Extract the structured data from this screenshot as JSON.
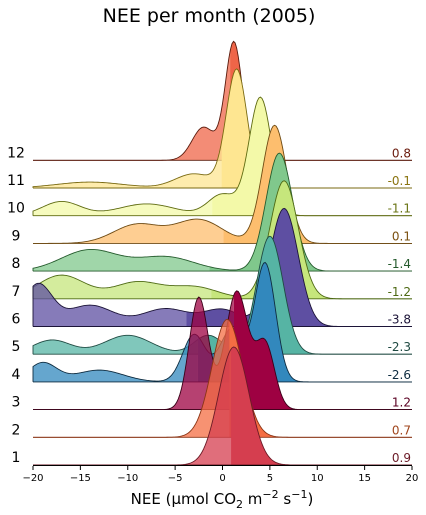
{
  "chart_data": {
    "type": "ridgeline",
    "title": "NEE per month (2005)",
    "xlabel": {
      "prefix": "NEE (µmol CO",
      "sub": "2",
      "mid": " m",
      "sup1": "−2",
      "mid2": " s",
      "sup2": "−1",
      "suffix": ")"
    },
    "xlim": [
      -20,
      20
    ],
    "xticks": [
      -20,
      -15,
      -10,
      -5,
      0,
      5,
      10,
      15,
      20
    ],
    "months": [
      {
        "label": "1",
        "mean": "0.9",
        "mean_value": 0.9,
        "fill": "#d53e4f",
        "edge": "#6b1a26",
        "value_color": "#6b1a26",
        "peaks": [
          {
            "mu": 1.2,
            "sigma": 1.6,
            "h": 1.0
          }
        ]
      },
      {
        "label": "2",
        "mean": "0.7",
        "mean_value": 0.7,
        "fill": "#f46d43",
        "edge": "#8a3414",
        "value_color": "#a0451c",
        "peaks": [
          {
            "mu": 0.5,
            "sigma": 1.6,
            "h": 1.0
          }
        ]
      },
      {
        "label": "3",
        "mean": "1.2",
        "mean_value": 1.2,
        "fill": "#9e0142",
        "edge": "#3a0018",
        "value_color": "#5a0022",
        "peaks": [
          {
            "mu": -2.5,
            "sigma": 1.0,
            "h": 0.95
          },
          {
            "mu": 1.5,
            "sigma": 1.2,
            "h": 1.0
          },
          {
            "mu": 4.5,
            "sigma": 1.0,
            "h": 0.55
          }
        ]
      },
      {
        "label": "4",
        "mean": "-2.6",
        "mean_value": -2.6,
        "fill": "#3288bd",
        "edge": "#0e2c40",
        "value_color": "#0e2c40",
        "peaks": [
          {
            "mu": -19.0,
            "sigma": 1.5,
            "h": 0.16
          },
          {
            "mu": -13.0,
            "sigma": 2.5,
            "h": 0.1
          },
          {
            "mu": -3.0,
            "sigma": 1.2,
            "h": 0.4
          },
          {
            "mu": 1.0,
            "sigma": 1.3,
            "h": 0.45
          },
          {
            "mu": 4.5,
            "sigma": 1.1,
            "h": 1.0
          }
        ]
      },
      {
        "label": "5",
        "mean": "-2.3",
        "mean_value": -2.3,
        "fill": "#56b4a4",
        "edge": "#1f4a42",
        "value_color": "#1f4a42",
        "peaks": [
          {
            "mu": -18.0,
            "sigma": 2.0,
            "h": 0.12
          },
          {
            "mu": -10.0,
            "sigma": 2.5,
            "h": 0.16
          },
          {
            "mu": -1.5,
            "sigma": 1.5,
            "h": 0.16
          },
          {
            "mu": 5.0,
            "sigma": 1.4,
            "h": 1.0
          }
        ]
      },
      {
        "label": "6",
        "mean": "-3.8",
        "mean_value": -3.8,
        "fill": "#5e4fa2",
        "edge": "#1c1438",
        "value_color": "#1c1438",
        "peaks": [
          {
            "mu": -19.5,
            "sigma": 1.5,
            "h": 0.35
          },
          {
            "mu": -14.0,
            "sigma": 2.5,
            "h": 0.18
          },
          {
            "mu": -6.0,
            "sigma": 2.5,
            "h": 0.15
          },
          {
            "mu": 0.0,
            "sigma": 2.0,
            "h": 0.14
          },
          {
            "mu": 6.5,
            "sigma": 1.5,
            "h": 1.0
          }
        ]
      },
      {
        "label": "7",
        "mean": "-1.2",
        "mean_value": -1.2,
        "fill": "#c6e67c",
        "edge": "#4e6a14",
        "value_color": "#4e6a14",
        "peaks": [
          {
            "mu": -17.0,
            "sigma": 2.5,
            "h": 0.2
          },
          {
            "mu": -9.0,
            "sigma": 2.5,
            "h": 0.14
          },
          {
            "mu": -3.0,
            "sigma": 2.5,
            "h": 0.1
          },
          {
            "mu": 6.5,
            "sigma": 1.5,
            "h": 1.0
          }
        ]
      },
      {
        "label": "8",
        "mean": "-1.4",
        "mean_value": -1.4,
        "fill": "#80c88c",
        "edge": "#245a2c",
        "value_color": "#245a2c",
        "peaks": [
          {
            "mu": -14.0,
            "sigma": 3.0,
            "h": 0.18
          },
          {
            "mu": -6.0,
            "sigma": 3.0,
            "h": 0.12
          },
          {
            "mu": 6.0,
            "sigma": 1.4,
            "h": 1.0
          }
        ]
      },
      {
        "label": "9",
        "mean": "0.1",
        "mean_value": 0.1,
        "fill": "#fdbe6e",
        "edge": "#6e4a12",
        "value_color": "#7a5010",
        "peaks": [
          {
            "mu": -9.0,
            "sigma": 2.5,
            "h": 0.16
          },
          {
            "mu": -2.5,
            "sigma": 2.5,
            "h": 0.2
          },
          {
            "mu": 5.5,
            "sigma": 1.3,
            "h": 1.0
          }
        ]
      },
      {
        "label": "10",
        "mean": "-1.1",
        "mean_value": -1.1,
        "fill": "#f3f9a8",
        "edge": "#5e6a10",
        "value_color": "#6a7414",
        "peaks": [
          {
            "mu": -17.0,
            "sigma": 2.0,
            "h": 0.12
          },
          {
            "mu": -8.0,
            "sigma": 3.0,
            "h": 0.1
          },
          {
            "mu": 0.0,
            "sigma": 1.5,
            "h": 0.18
          },
          {
            "mu": 4.0,
            "sigma": 1.2,
            "h": 1.0
          }
        ]
      },
      {
        "label": "11",
        "mean": "-0.1",
        "mean_value": -0.1,
        "fill": "#fee691",
        "edge": "#7a6a12",
        "value_color": "#8a7410",
        "peaks": [
          {
            "mu": -14.0,
            "sigma": 3.5,
            "h": 0.05
          },
          {
            "mu": -3.0,
            "sigma": 2.0,
            "h": 0.12
          },
          {
            "mu": 1.5,
            "sigma": 1.1,
            "h": 1.0
          }
        ]
      },
      {
        "label": "12",
        "mean": "0.8",
        "mean_value": 0.8,
        "fill": "#ef6548",
        "edge": "#5a1a0c",
        "value_color": "#6a1a0c",
        "peaks": [
          {
            "mu": -2.0,
            "sigma": 1.2,
            "h": 0.28
          },
          {
            "mu": 1.2,
            "sigma": 0.9,
            "h": 1.0
          }
        ]
      }
    ],
    "grid": false,
    "legend": "none"
  }
}
